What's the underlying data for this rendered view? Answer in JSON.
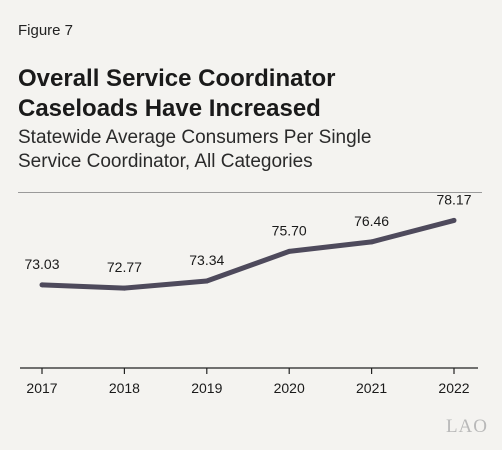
{
  "figure_label": "Figure 7",
  "title_line1": "Overall Service Coordinator",
  "title_line2": "Caseloads Have Increased",
  "subtitle_line1": "Statewide Average Consumers Per Single",
  "subtitle_line2": "Service Coordinator, All Categories",
  "watermark": "LAO",
  "colors": {
    "line": "#4e4a5c",
    "axis": "#222222",
    "rule": "#9a9a9a",
    "background": "#f4f3f0"
  },
  "chart_data": {
    "type": "line",
    "x": [
      "2017",
      "2018",
      "2019",
      "2020",
      "2021",
      "2022"
    ],
    "series": [
      {
        "values": [
          73.03,
          72.77,
          73.34,
          75.7,
          76.46,
          78.17
        ],
        "labels": [
          "73.03",
          "72.77",
          "73.34",
          "75.70",
          "76.46",
          "78.17"
        ]
      }
    ],
    "ylim": [
      66.4,
      79.4
    ],
    "grid": false,
    "legend": "none"
  }
}
